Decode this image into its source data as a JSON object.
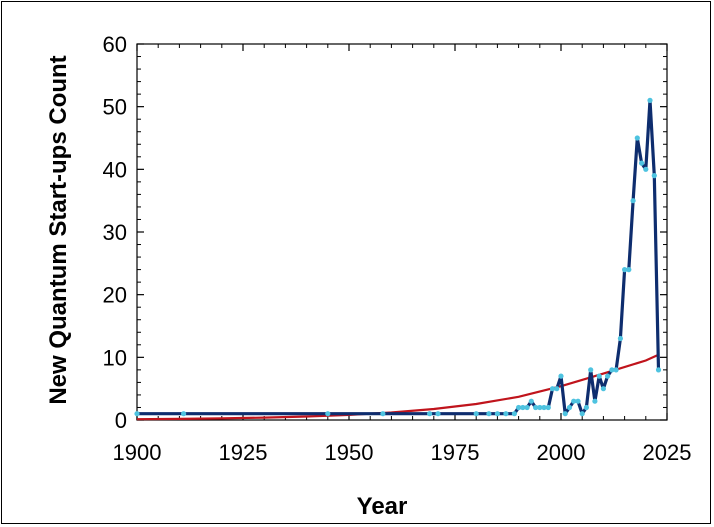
{
  "chart_data": {
    "type": "line",
    "title": "",
    "xlabel": "Year",
    "ylabel": "New Quantum Start-ups Count",
    "xlim": [
      1900,
      2025
    ],
    "ylim": [
      0,
      60
    ],
    "xticks": [
      1900,
      1925,
      1950,
      1975,
      2000,
      2025
    ],
    "yticks": [
      0,
      10,
      20,
      30,
      40,
      50,
      60
    ],
    "grid": false,
    "legend": "none",
    "series": [
      {
        "style": "line-with-markers",
        "line_color": "#0e2d6e",
        "marker_color": "#4ec3e0",
        "x": [
          1900,
          1911,
          1945,
          1958,
          1969,
          1971,
          1980,
          1983,
          1985,
          1987,
          1989,
          1990,
          1991,
          1992,
          1993,
          1994,
          1995,
          1996,
          1997,
          1998,
          1999,
          2000,
          2001,
          2002,
          2003,
          2004,
          2005,
          2006,
          2007,
          2008,
          2009,
          2010,
          2011,
          2012,
          2013,
          2014,
          2015,
          2016,
          2017,
          2018,
          2019,
          2020,
          2021,
          2022,
          2023
        ],
        "y": [
          1,
          1,
          1,
          1,
          1,
          1,
          1,
          1,
          1,
          1,
          1,
          2,
          2,
          2,
          3,
          2,
          2,
          2,
          2,
          5,
          5,
          7,
          1,
          2,
          3,
          3,
          1,
          2,
          8,
          3,
          7,
          5,
          7,
          8,
          8,
          13,
          24,
          24,
          35,
          45,
          41,
          40,
          51,
          39,
          8
        ]
      },
      {
        "style": "trendline-exponential",
        "line_color": "#c0141c",
        "x": [
          1900,
          1910,
          1920,
          1930,
          1940,
          1950,
          1960,
          1970,
          1980,
          1990,
          2000,
          2010,
          2020,
          2023
        ],
        "y": [
          0.12,
          0.18,
          0.26,
          0.38,
          0.56,
          0.82,
          1.2,
          1.75,
          2.55,
          3.7,
          5.4,
          7.4,
          9.5,
          10.4
        ]
      }
    ]
  }
}
